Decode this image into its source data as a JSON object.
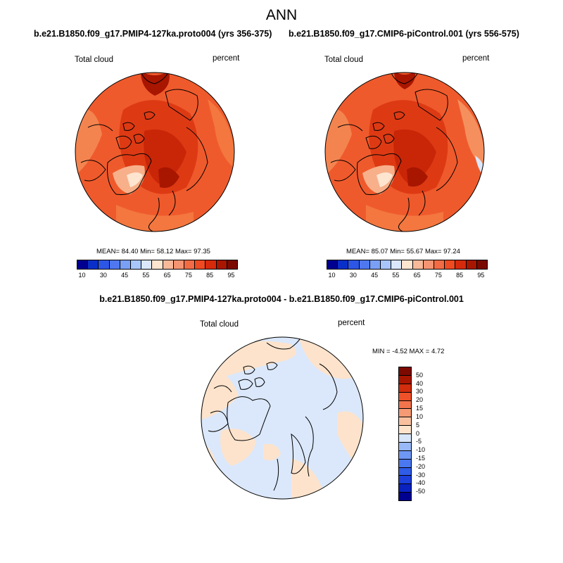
{
  "title": "ANN",
  "panels": [
    {
      "case": "b.e21.B1850.f09_g17.PMIP4-127ka.proto004 (yrs 356-375)",
      "variable": "Total cloud",
      "units": "percent",
      "mean_label": "MEAN=",
      "mean": "84.40",
      "min_label": "Min=",
      "min": "58.12",
      "max_label": "Max=",
      "max": "97.35"
    },
    {
      "case": "b.e21.B1850.f09_g17.CMIP6-piControl.001 (yrs 556-575)",
      "variable": "Total cloud",
      "units": "percent",
      "mean_label": "MEAN=",
      "mean": "85.07",
      "min_label": "Min=",
      "min": "55.67",
      "max_label": "Max=",
      "max": "97.24"
    }
  ],
  "diff": {
    "title": "b.e21.B1850.f09_g17.PMIP4-127ka.proto004 - b.e21.B1850.f09_g17.CMIP6-piControl.001",
    "variable": "Total cloud",
    "units": "percent",
    "min_label": "MIN =",
    "min": "-4.52",
    "max_label": "MAX =",
    "max": "4.72"
  },
  "colorbar": {
    "colors": [
      "#000090",
      "#0a2fc8",
      "#2d55e6",
      "#4f78f0",
      "#7aa0f5",
      "#a9c6fa",
      "#dbe8fb",
      "#fde5d0",
      "#f7b99a",
      "#f59472",
      "#f26b45",
      "#ef4a22",
      "#d62a0c",
      "#a81600",
      "#7a0a00"
    ],
    "ticks": [
      "10",
      "30",
      "45",
      "55",
      "65",
      "75",
      "85",
      "95"
    ]
  },
  "diff_colorbar": {
    "colors": [
      "#000090",
      "#0a22c0",
      "#1d3fdc",
      "#2f5ce8",
      "#4a78f0",
      "#6e98f4",
      "#98b8f7",
      "#d8e6fa",
      "#fde3cc",
      "#f9c0a0",
      "#f59a74",
      "#f2744c",
      "#ef5129",
      "#d22d0c",
      "#a91600",
      "#7c0a00"
    ],
    "ticks": [
      "50",
      "40",
      "30",
      "20",
      "15",
      "10",
      "5",
      "0",
      "-5",
      "-10",
      "-15",
      "-20",
      "-30",
      "-40",
      "-50"
    ]
  }
}
